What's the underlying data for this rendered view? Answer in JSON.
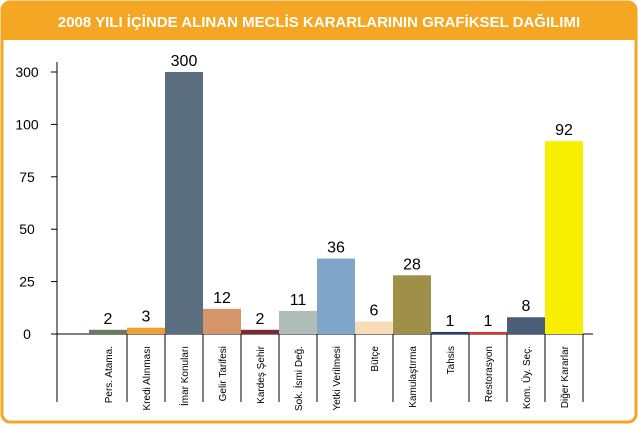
{
  "chart_data": {
    "type": "bar",
    "title": "2008 YILI İÇİNDE ALINAN MECLİS KARARLARININ GRAFİKSEL DAĞILIMI",
    "categories": [
      "Pers. Atama.",
      "Kredi Alınması",
      "İmar Konuları",
      "Gelir Tarifesi",
      "Kardeş Şehir",
      "Sok. İsmi Değ.",
      "Yetki Verilmesi",
      "Bütçe",
      "Kamulaştırma",
      "Tahsis",
      "Restorasyon",
      "Kom. Üy. Seç.",
      "Diğer Kararlar"
    ],
    "values": [
      2,
      3,
      300,
      12,
      2,
      11,
      36,
      6,
      28,
      1,
      1,
      8,
      92
    ],
    "colors": [
      "#6b7a5e",
      "#f0a030",
      "#5a6e80",
      "#d4956a",
      "#7a2a30",
      "#b0bcb8",
      "#7fa6c8",
      "#f8dcb8",
      "#9e9048",
      "#2a3e6a",
      "#e03030",
      "#4a5e7a",
      "#f8f000"
    ],
    "ylim": [
      0,
      300
    ],
    "yticks": [
      0,
      25,
      50,
      75,
      100,
      300
    ]
  }
}
